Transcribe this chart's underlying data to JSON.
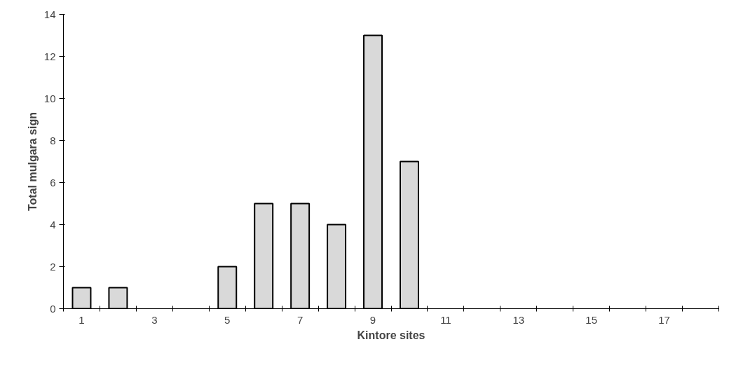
{
  "chart_data": {
    "type": "bar",
    "xlabel": "Kintore sites",
    "ylabel": "Total mulgara sign",
    "categories": [
      "1",
      null,
      "3",
      null,
      "5",
      null,
      "7",
      null,
      "9",
      null,
      "11",
      null,
      "13",
      null,
      "15",
      null,
      "17",
      null
    ],
    "values": [
      1,
      1,
      0,
      0,
      2,
      5,
      5,
      4,
      13,
      7,
      0,
      0,
      0,
      0,
      0,
      0,
      0,
      0
    ],
    "color": "#d9d9d9",
    "ylim": [
      0,
      14
    ],
    "yticks": [
      0,
      2,
      4,
      6,
      8,
      10,
      12,
      14
    ],
    "grid": false
  }
}
